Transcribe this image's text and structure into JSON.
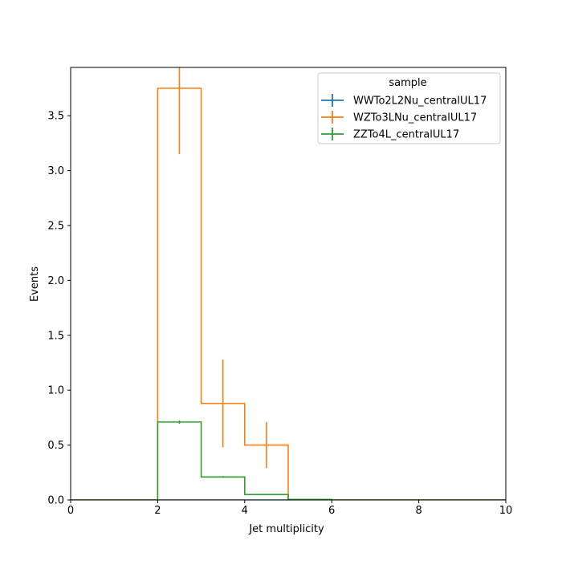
{
  "chart_data": {
    "type": "step",
    "title": "",
    "xlabel": "Jet multiplicity",
    "ylabel": "Events",
    "xlim": [
      0,
      10
    ],
    "ylim": [
      0,
      3.94
    ],
    "x_ticks": [
      0,
      2,
      4,
      6,
      8,
      10
    ],
    "y_ticks": [
      0.0,
      0.5,
      1.0,
      1.5,
      2.0,
      2.5,
      3.0,
      3.5
    ],
    "bin_edges": [
      0,
      1,
      2,
      3,
      4,
      5,
      6,
      7,
      8,
      9,
      10
    ],
    "legend": {
      "title": "sample",
      "placement": "top-right"
    },
    "grid": false,
    "series": [
      {
        "name": "WWTo2L2Nu_centralUL17",
        "color": "#1f77b4",
        "values": [
          0,
          0,
          0,
          0,
          0,
          0,
          0,
          0,
          0,
          0
        ],
        "errors": [
          0,
          0,
          0,
          0,
          0,
          0,
          0,
          0,
          0,
          0
        ]
      },
      {
        "name": "WZTo3LNu_centralUL17",
        "color": "#ff7f0e",
        "values": [
          0,
          0,
          3.75,
          0.88,
          0.5,
          0,
          0,
          0,
          0,
          0
        ],
        "errors": [
          0,
          0,
          0.6,
          0.4,
          0.21,
          0,
          0,
          0,
          0,
          0
        ]
      },
      {
        "name": "ZZTo4L_centralUL17",
        "color": "#2ca02c",
        "values": [
          0,
          0,
          0.71,
          0.21,
          0.05,
          0.005,
          0,
          0,
          0,
          0
        ],
        "errors": [
          0,
          0,
          0.015,
          0.008,
          0.004,
          0.001,
          0,
          0,
          0,
          0
        ]
      }
    ]
  }
}
